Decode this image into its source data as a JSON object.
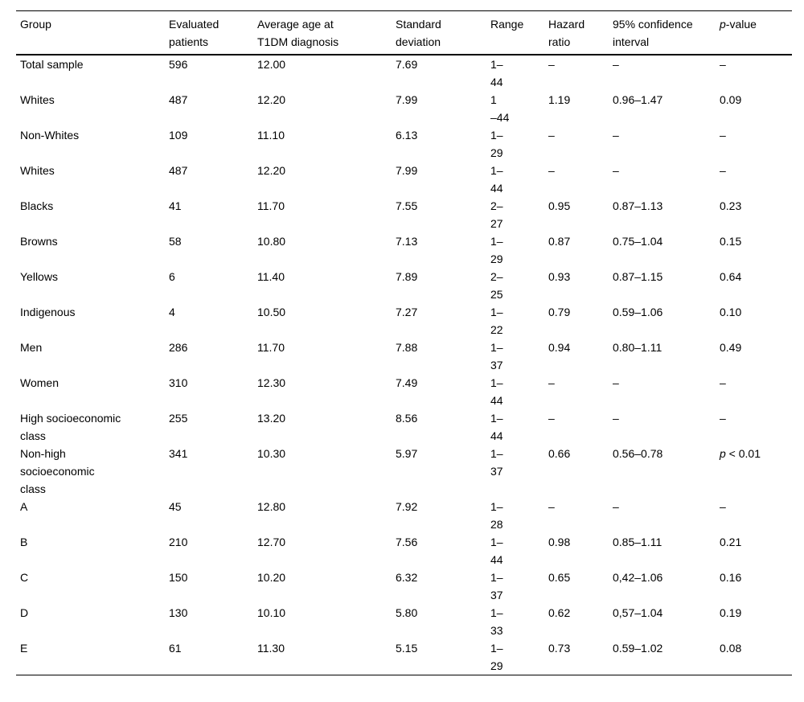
{
  "page": {
    "background_color": "#ffffff",
    "text_color": "#000000",
    "border_color": "#000000"
  },
  "table": {
    "headers": [
      "Group",
      "Evaluated\npatients",
      "Average age at\nT1DM diagnosis",
      "Standard\ndeviation",
      "Range",
      "Hazard\nratio",
      "95% confidence\ninterval"
    ],
    "pvalue_header": {
      "prefix": "p",
      "suffix": "-value"
    },
    "rows": [
      {
        "group": "Total sample",
        "evaluated": "596",
        "avg_age": "12.00",
        "std_dev": "7.69",
        "range": "1–\n44",
        "hazard": "–",
        "ci": "–",
        "pvalue": "–"
      },
      {
        "group": "Whites",
        "evaluated": "487",
        "avg_age": "12.20",
        "std_dev": "7.99",
        "range": "1\n–44",
        "hazard": "1.19",
        "ci": "0.96–1.47",
        "pvalue": "0.09"
      },
      {
        "group": "Non-Whites",
        "evaluated": "109",
        "avg_age": "11.10",
        "std_dev": "6.13",
        "range": "1–\n29",
        "hazard": "–",
        "ci": "–",
        "pvalue": "–"
      },
      {
        "group": "Whites",
        "evaluated": "487",
        "avg_age": "12.20",
        "std_dev": "7.99",
        "range": "1–\n44",
        "hazard": "–",
        "ci": "–",
        "pvalue": "–"
      },
      {
        "group": "Blacks",
        "evaluated": "41",
        "avg_age": "11.70",
        "std_dev": "7.55",
        "range": "2–\n27",
        "hazard": "0.95",
        "ci": "0.87–1.13",
        "pvalue": "0.23"
      },
      {
        "group": "Browns",
        "evaluated": "58",
        "avg_age": "10.80",
        "std_dev": "7.13",
        "range": "1–\n29",
        "hazard": "0.87",
        "ci": "0.75–1.04",
        "pvalue": "0.15"
      },
      {
        "group": "Yellows",
        "evaluated": "6",
        "avg_age": "11.40",
        "std_dev": "7.89",
        "range": "2–\n25",
        "hazard": "0.93",
        "ci": "0.87–1.15",
        "pvalue": "0.64"
      },
      {
        "group": "Indigenous",
        "evaluated": "4",
        "avg_age": "10.50",
        "std_dev": "7.27",
        "range": "1–\n22",
        "hazard": "0.79",
        "ci": "0.59–1.06",
        "pvalue": "0.10"
      },
      {
        "group": "Men",
        "evaluated": "286",
        "avg_age": "11.70",
        "std_dev": "7.88",
        "range": "1–\n37",
        "hazard": "0.94",
        "ci": "0.80–1.11",
        "pvalue": "0.49"
      },
      {
        "group": "Women",
        "evaluated": "310",
        "avg_age": "12.30",
        "std_dev": "7.49",
        "range": "1–\n44",
        "hazard": "–",
        "ci": "–",
        "pvalue": "–"
      },
      {
        "group": "High socioeconomic\nclass",
        "evaluated": "255",
        "avg_age": "13.20",
        "std_dev": "8.56",
        "range": "1–\n44",
        "hazard": "–",
        "ci": "–",
        "pvalue": "–"
      },
      {
        "group": "Non-high\nsocioeconomic\nclass",
        "evaluated": "341",
        "avg_age": "10.30",
        "std_dev": "5.97",
        "range": "1–\n37",
        "hazard": "0.66",
        "ci": "0.56–0.78",
        "pvalue": "p < 0.01"
      },
      {
        "group": "A",
        "evaluated": "45",
        "avg_age": "12.80",
        "std_dev": "7.92",
        "range": "1–\n28",
        "hazard": "–",
        "ci": "–",
        "pvalue": "–"
      },
      {
        "group": "B",
        "evaluated": "210",
        "avg_age": "12.70",
        "std_dev": "7.56",
        "range": "1–\n44",
        "hazard": "0.98",
        "ci": "0.85–1.11",
        "pvalue": "0.21"
      },
      {
        "group": "C",
        "evaluated": "150",
        "avg_age": "10.20",
        "std_dev": "6.32",
        "range": "1–\n37",
        "hazard": "0.65",
        "ci": "0,42–1.06",
        "pvalue": "0.16"
      },
      {
        "group": "D",
        "evaluated": "130",
        "avg_age": "10.10",
        "std_dev": "5.80",
        "range": "1–\n33",
        "hazard": "0.62",
        "ci": "0,57–1.04",
        "pvalue": "0.19"
      },
      {
        "group": "E",
        "evaluated": "61",
        "avg_age": "11.30",
        "std_dev": "5.15",
        "range": "1–\n29",
        "hazard": "0.73",
        "ci": "0.59–1.02",
        "pvalue": "0.08"
      }
    ]
  }
}
